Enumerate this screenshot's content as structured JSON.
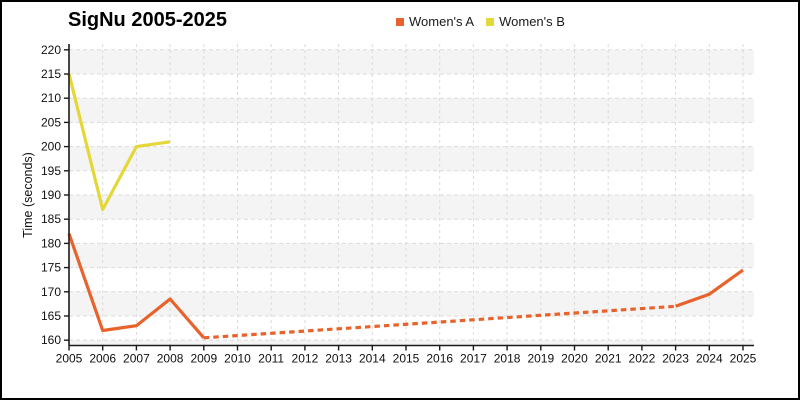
{
  "title": "SigNu 2005-2025",
  "legend": [
    {
      "label": "Women's A",
      "color": "#E8632C"
    },
    {
      "label": "Women's B",
      "color": "#E3D739"
    }
  ],
  "chart_data": {
    "type": "line",
    "title": "SigNu 2005-2025",
    "xlabel": "",
    "ylabel": "Time (seconds)",
    "xlim": [
      2005,
      2025
    ],
    "ylim": [
      158.9,
      221.2
    ],
    "x_ticks": [
      2005,
      2006,
      2007,
      2008,
      2009,
      2010,
      2011,
      2012,
      2013,
      2014,
      2015,
      2016,
      2017,
      2018,
      2019,
      2020,
      2021,
      2022,
      2023,
      2024,
      2025
    ],
    "y_ticks": [
      160,
      165,
      170,
      175,
      180,
      185,
      190,
      195,
      200,
      205,
      210,
      215,
      220
    ],
    "grid": "dashed both axes",
    "gridline_color": "#DBDBDB",
    "band_fill_color": "#F4F4F4",
    "axis_color": "#1A1A1A",
    "legend_position": "top-center",
    "series": [
      {
        "name": "Women's A",
        "color": "#E8632C",
        "segments": [
          {
            "style": "solid",
            "points": [
              [
                2005,
                182
              ],
              [
                2006,
                162
              ],
              [
                2007,
                163
              ],
              [
                2008,
                168.5
              ],
              [
                2009,
                160.5
              ]
            ]
          },
          {
            "style": "dashed",
            "points": [
              [
                2009,
                160.5
              ],
              [
                2023,
                167
              ]
            ]
          },
          {
            "style": "solid",
            "points": [
              [
                2023,
                167
              ],
              [
                2024,
                169.5
              ],
              [
                2025,
                174.5
              ]
            ]
          }
        ]
      },
      {
        "name": "Women's B",
        "color": "#E3D739",
        "segments": [
          {
            "style": "solid",
            "points": [
              [
                2005,
                215
              ],
              [
                2006,
                187
              ],
              [
                2007,
                200
              ],
              [
                2008,
                201
              ]
            ]
          }
        ]
      }
    ]
  }
}
